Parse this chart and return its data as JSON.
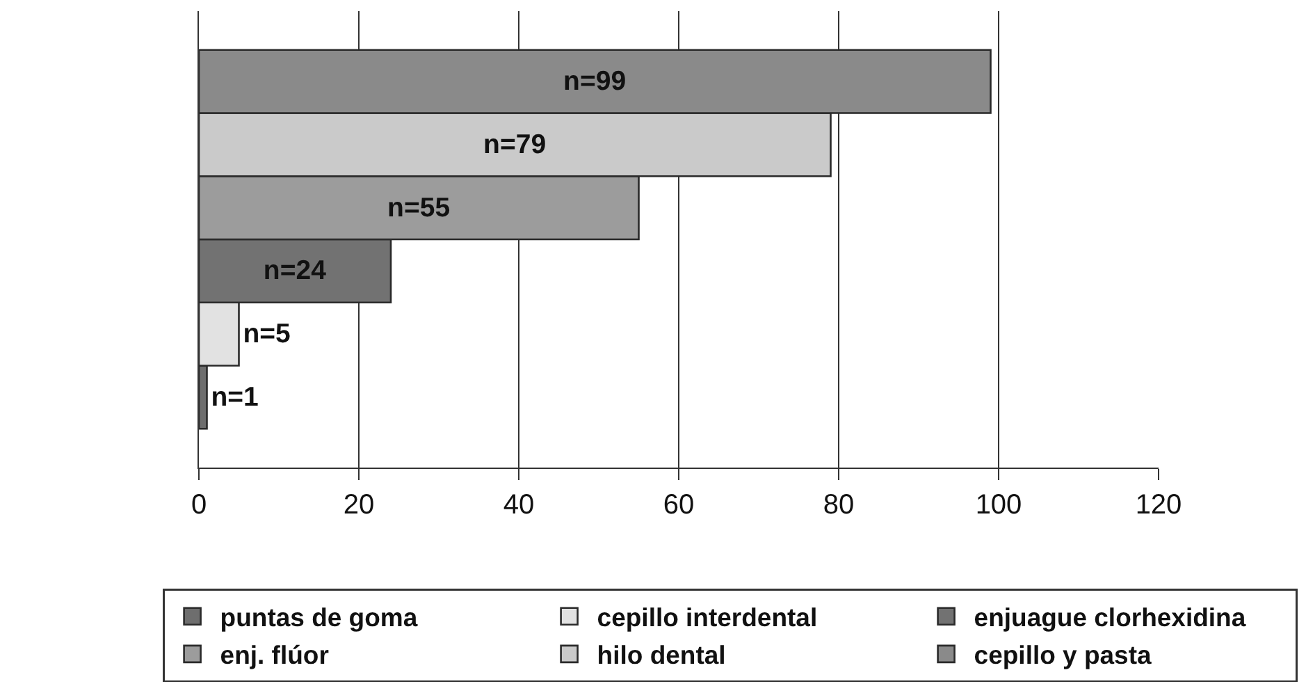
{
  "chart_data": {
    "type": "bar",
    "orientation": "horizontal",
    "categories": [
      null
    ],
    "series": [
      {
        "name": "puntas de goma",
        "color": "#6e6e6e",
        "values": [
          1
        ],
        "value_labels": [
          "n=1"
        ]
      },
      {
        "name": "cepillo interdental",
        "color": "#e2e2e2",
        "values": [
          5
        ],
        "value_labels": [
          "n=5"
        ]
      },
      {
        "name": "enjuague clorhexidina",
        "color": "#727272",
        "values": [
          24
        ],
        "value_labels": [
          "n=24"
        ]
      },
      {
        "name": "enj. flúor",
        "color": "#9c9c9c",
        "values": [
          55
        ],
        "value_labels": [
          "n=55"
        ]
      },
      {
        "name": "hilo dental",
        "color": "#cacaca",
        "values": [
          79
        ],
        "value_labels": [
          "n=79"
        ]
      },
      {
        "name": "cepillo y pasta",
        "color": "#8a8a8a",
        "values": [
          99
        ],
        "value_labels": [
          "n=99"
        ]
      }
    ],
    "xlim": [
      0,
      120
    ],
    "xticks": [
      0,
      20,
      40,
      60,
      80,
      100,
      120
    ],
    "tick_labels": "x",
    "grid": "x",
    "legend": "bottom"
  }
}
